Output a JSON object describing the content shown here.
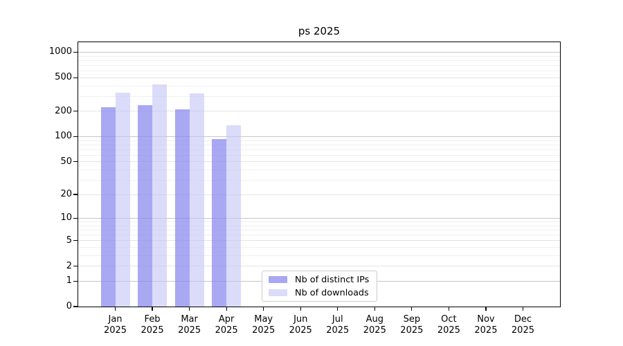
{
  "chart_data": {
    "type": "bar",
    "title": "ps 2025",
    "x_categories": [
      {
        "month": "Jan",
        "year": "2025"
      },
      {
        "month": "Feb",
        "year": "2025"
      },
      {
        "month": "Mar",
        "year": "2025"
      },
      {
        "month": "Apr",
        "year": "2025"
      },
      {
        "month": "May",
        "year": "2025"
      },
      {
        "month": "Jun",
        "year": "2025"
      },
      {
        "month": "Jul",
        "year": "2025"
      },
      {
        "month": "Aug",
        "year": "2025"
      },
      {
        "month": "Sep",
        "year": "2025"
      },
      {
        "month": "Oct",
        "year": "2025"
      },
      {
        "month": "Nov",
        "year": "2025"
      },
      {
        "month": "Dec",
        "year": "2025"
      }
    ],
    "series": [
      {
        "name": "Nb of distinct IPs",
        "color": "#8686ee",
        "fill_opacity": 0.72,
        "values": [
          225,
          237,
          212,
          93,
          0,
          0,
          0,
          0,
          0,
          0,
          0,
          0
        ]
      },
      {
        "name": "Nb of downloads",
        "color": "#c3c3f6",
        "fill_opacity": 0.6,
        "values": [
          330,
          413,
          325,
          136,
          0,
          0,
          0,
          0,
          0,
          0,
          0,
          0
        ]
      }
    ],
    "y_axis": {
      "scale": "log1p",
      "ticks": [
        0,
        1,
        2,
        5,
        10,
        20,
        50,
        100,
        200,
        500,
        1000
      ],
      "minor_ticks": [
        3,
        4,
        6,
        7,
        8,
        9,
        30,
        40,
        60,
        70,
        80,
        90,
        300,
        400,
        600,
        700,
        800,
        900
      ],
      "range": [
        0,
        1300
      ]
    },
    "legend": {
      "position": "inside-bottom-center"
    },
    "grid": true,
    "colors": {
      "background": "#ffffff",
      "axis": "#000000",
      "text": "#000000",
      "grid_minor": "#f0f0f0",
      "grid_major": "#e4e4e4",
      "grid_power10": "#c6c6c6",
      "legend_border": "#cccccc"
    }
  }
}
